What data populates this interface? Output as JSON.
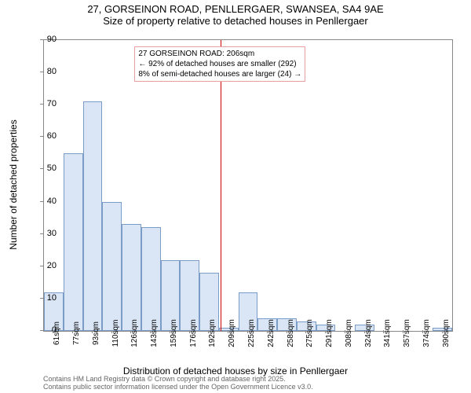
{
  "title": {
    "line1": "27, GORSEINON ROAD, PENLLERGAER, SWANSEA, SA4 9AE",
    "line2": "Size of property relative to detached houses in Penllergaer"
  },
  "chart": {
    "type": "histogram",
    "ylim": [
      0,
      90
    ],
    "ytick_step": 10,
    "bar_fill": "#dae6f5",
    "bar_border": "#7a9cc6",
    "background": "#ffffff",
    "categories": [
      "61sqm",
      "77sqm",
      "93sqm",
      "110sqm",
      "126sqm",
      "143sqm",
      "159sqm",
      "176sqm",
      "192sqm",
      "209sqm",
      "225sqm",
      "242sqm",
      "258sqm",
      "275sqm",
      "291sqm",
      "308sqm",
      "324sqm",
      "341sqm",
      "357sqm",
      "374sqm",
      "390sqm"
    ],
    "values": [
      12,
      55,
      71,
      40,
      33,
      32,
      22,
      22,
      18,
      1,
      12,
      4,
      4,
      3,
      2,
      0,
      2,
      0,
      0,
      0,
      1
    ],
    "ylabel": "Number of detached properties",
    "xlabel": "Distribution of detached houses by size in Penllergaer",
    "label_fontsize": 12,
    "tick_fontsize": 10
  },
  "marker": {
    "color": "#cc0000",
    "position_category_index": 9,
    "annotation": {
      "line1": "27 GORSEINON ROAD: 206sqm",
      "line2": "← 92% of detached houses are smaller (292)",
      "line3": "8% of semi-detached houses are larger (24) →",
      "border_color": "#e6a0a0",
      "background": "#ffffff"
    }
  },
  "footer": {
    "line1": "Contains HM Land Registry data © Crown copyright and database right 2025.",
    "line2": "Contains public sector information licensed under the Open Government Licence v3.0."
  }
}
